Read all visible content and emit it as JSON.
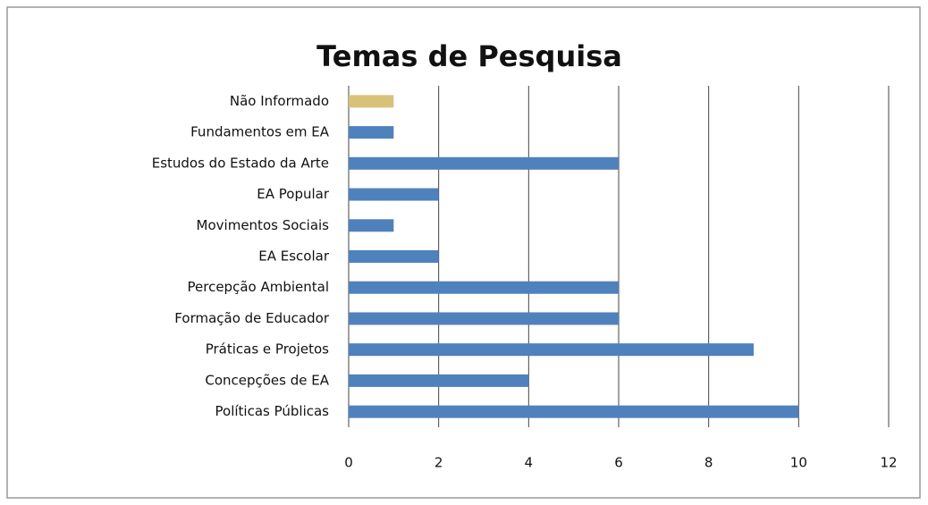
{
  "chart_data": {
    "type": "barh",
    "title": "Temas de Pesquisa",
    "categories": [
      "Não Informado",
      "Fundamentos em EA",
      "Estudos do Estado da Arte",
      "EA Popular",
      "Movimentos Sociais",
      "EA Escolar",
      "Percepção Ambiental",
      "Formação de Educador",
      "Práticas e Projetos",
      "Concepções de EA",
      "Políticas Públicas"
    ],
    "values": [
      1,
      1,
      6,
      2,
      1,
      2,
      6,
      6,
      9,
      4,
      10
    ],
    "colors": [
      "#d8c27a",
      "#4f81bd",
      "#4f81bd",
      "#4f81bd",
      "#4f81bd",
      "#4f81bd",
      "#4f81bd",
      "#4f81bd",
      "#4f81bd",
      "#4f81bd",
      "#4f81bd"
    ],
    "xlim": [
      0,
      12
    ],
    "xticks": [
      0,
      2,
      4,
      6,
      8,
      10,
      12
    ],
    "grid": true
  }
}
